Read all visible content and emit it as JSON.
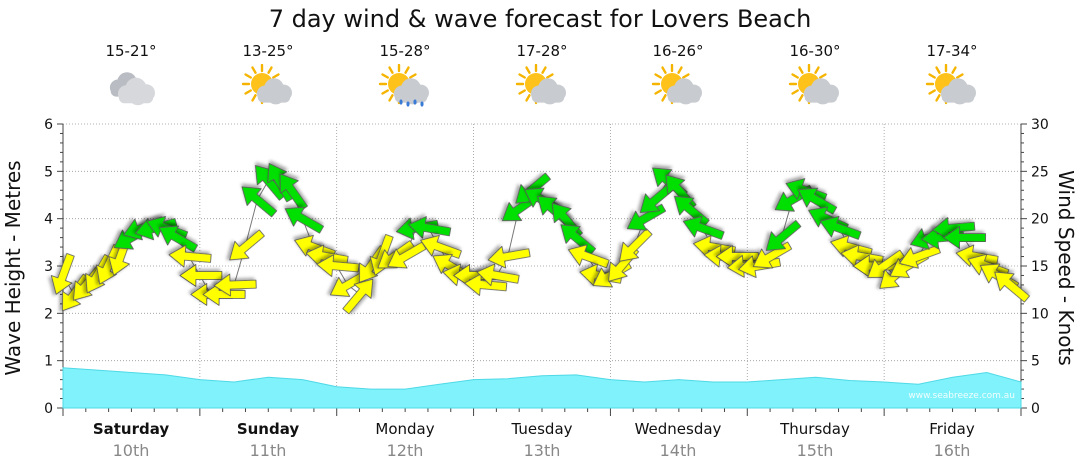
{
  "title": "7 day wind & wave forecast for Lovers Beach",
  "watermark": "www.seabreeze.com.au",
  "colors": {
    "wave_fill": "#7ff2fb",
    "wave_stroke": "#4fd9e6",
    "arrow_light": "#ffff00",
    "arrow_moderate": "#00e000",
    "arrow_strong": "#ee1111",
    "grid": "#999999"
  },
  "days": [
    {
      "name": "Saturday",
      "date": "10th",
      "temp": "15-21°",
      "weather_icon": "cloudy-icon",
      "bold": true
    },
    {
      "name": "Sunday",
      "date": "11th",
      "temp": "13-25°",
      "weather_icon": "partly-cloudy-icon",
      "bold": true
    },
    {
      "name": "Monday",
      "date": "12th",
      "temp": "15-28°",
      "weather_icon": "showers-icon",
      "bold": false
    },
    {
      "name": "Tuesday",
      "date": "13th",
      "temp": "17-28°",
      "weather_icon": "partly-cloudy-icon",
      "bold": false
    },
    {
      "name": "Wednesday",
      "date": "14th",
      "temp": "16-26°",
      "weather_icon": "partly-cloudy-icon",
      "bold": false
    },
    {
      "name": "Thursday",
      "date": "15th",
      "temp": "16-30°",
      "weather_icon": "partly-cloudy-icon",
      "bold": false
    },
    {
      "name": "Friday",
      "date": "16th",
      "temp": "17-34°",
      "weather_icon": "partly-cloudy-icon",
      "bold": false
    }
  ],
  "chart_data": {
    "type": "area",
    "title": "7 day wind & wave forecast for Lovers Beach",
    "ylabel": "Wave Height - Metres",
    "y2label": "Wind Speed - Knots",
    "ylim": [
      0,
      6
    ],
    "y2lim": [
      0,
      30
    ],
    "yticks": [
      "0",
      "1",
      "2",
      "3",
      "4",
      "5",
      "6"
    ],
    "y2ticks": [
      "0",
      "5",
      "10",
      "15",
      "20",
      "25",
      "30"
    ],
    "grid": true,
    "x_days": [
      "Saturday 10th",
      "Sunday 11th",
      "Monday 12th",
      "Tuesday 13th",
      "Wednesday 14th",
      "Thursday 15th",
      "Friday 16th"
    ],
    "wave_height_m": {
      "x_day": [
        0,
        0.25,
        0.5,
        0.75,
        1,
        1.25,
        1.5,
        1.75,
        2,
        2.25,
        2.5,
        2.75,
        3,
        3.25,
        3.5,
        3.75,
        4,
        4.25,
        4.5,
        4.75,
        5,
        5.25,
        5.5,
        5.75,
        6,
        6.25,
        6.5,
        6.75,
        7
      ],
      "values": [
        0.85,
        0.8,
        0.75,
        0.7,
        0.6,
        0.55,
        0.65,
        0.6,
        0.45,
        0.4,
        0.4,
        0.5,
        0.6,
        0.62,
        0.68,
        0.7,
        0.6,
        0.55,
        0.6,
        0.55,
        0.55,
        0.6,
        0.65,
        0.58,
        0.55,
        0.5,
        0.65,
        0.75,
        0.55
      ]
    },
    "wind_knots": {
      "x_day": [
        0,
        0.08,
        0.17,
        0.25,
        0.33,
        0.42,
        0.5,
        0.58,
        0.67,
        0.75,
        0.83,
        0.92,
        1,
        1.08,
        1.17,
        1.25,
        1.33,
        1.42,
        1.5,
        1.58,
        1.67,
        1.75,
        1.83,
        1.92,
        2,
        2.08,
        2.17,
        2.25,
        2.33,
        2.42,
        2.5,
        2.58,
        2.67,
        2.75,
        2.83,
        2.92,
        3,
        3.08,
        3.17,
        3.25,
        3.33,
        3.42,
        3.5,
        3.58,
        3.67,
        3.75,
        3.83,
        3.92,
        4,
        4.08,
        4.17,
        4.25,
        4.33,
        4.42,
        4.5,
        4.58,
        4.67,
        4.75,
        4.83,
        4.92,
        5,
        5.08,
        5.17,
        5.25,
        5.33,
        5.42,
        5.5,
        5.58,
        5.67,
        5.75,
        5.83,
        5.92,
        6,
        6.08,
        6.17,
        6.25,
        6.33,
        6.42,
        6.5,
        6.58,
        6.67,
        6.75,
        6.83,
        6.92
      ],
      "speed": [
        14,
        12,
        13,
        14,
        15,
        16,
        18,
        19,
        19,
        19,
        18,
        16,
        14,
        12,
        12,
        13,
        17,
        22,
        24,
        24,
        23,
        20,
        17,
        16,
        15,
        13,
        12,
        15,
        16,
        16,
        16,
        19,
        19,
        17,
        15,
        14,
        14,
        13,
        14,
        16,
        21,
        23,
        22,
        21,
        20,
        18,
        16,
        14,
        14,
        15,
        17,
        20,
        22,
        24,
        23,
        21,
        19,
        17,
        16,
        16,
        15,
        15,
        16,
        18,
        22,
        23,
        22,
        20,
        19,
        17,
        16,
        15,
        15,
        14,
        15,
        16,
        18,
        18,
        19,
        18,
        16,
        15,
        14,
        13
      ],
      "direction_deg": [
        20,
        35,
        40,
        30,
        25,
        20,
        60,
        70,
        75,
        110,
        120,
        95,
        90,
        90,
        90,
        88,
        50,
        130,
        140,
        150,
        145,
        120,
        110,
        100,
        95,
        60,
        220,
        35,
        20,
        55,
        60,
        80,
        100,
        110,
        120,
        100,
        90,
        95,
        100,
        80,
        55,
        50,
        120,
        130,
        140,
        130,
        110,
        100,
        60,
        40,
        45,
        60,
        50,
        130,
        140,
        130,
        110,
        100,
        95,
        90,
        85,
        80,
        60,
        50,
        60,
        110,
        120,
        115,
        110,
        105,
        100,
        90,
        55,
        50,
        60,
        70,
        70,
        85,
        85,
        90,
        100,
        110,
        120,
        130
      ]
    }
  }
}
